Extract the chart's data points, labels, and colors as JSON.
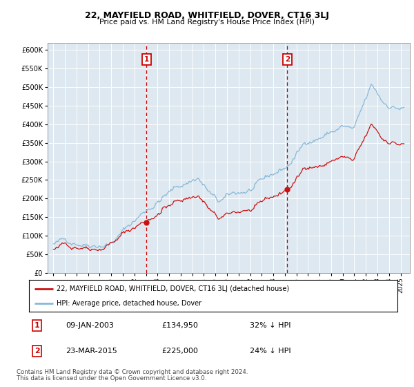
{
  "title": "22, MAYFIELD ROAD, WHITFIELD, DOVER, CT16 3LJ",
  "subtitle": "Price paid vs. HM Land Registry's House Price Index (HPI)",
  "legend_line1": "22, MAYFIELD ROAD, WHITFIELD, DOVER, CT16 3LJ (detached house)",
  "legend_line2": "HPI: Average price, detached house, Dover",
  "transaction1_date": "09-JAN-2003",
  "transaction1_price": 134950,
  "transaction1_year": 2003.03,
  "transaction1_label": "32% ↓ HPI",
  "transaction2_date": "23-MAR-2015",
  "transaction2_price": 225000,
  "transaction2_year": 2015.21,
  "transaction2_label": "24% ↓ HPI",
  "footer1": "Contains HM Land Registry data © Crown copyright and database right 2024.",
  "footer2": "This data is licensed under the Open Government Licence v3.0.",
  "hpi_color": "#89b8d8",
  "price_color": "#cc1111",
  "marker_color": "#cc1111",
  "vline_color": "#cc0000",
  "background_color": "#dde8f0",
  "ylim_max": 620000,
  "yticks": [
    0,
    50000,
    100000,
    150000,
    200000,
    250000,
    300000,
    350000,
    400000,
    450000,
    500000,
    550000,
    600000
  ],
  "xmin": 1994.5,
  "xmax": 2025.8
}
